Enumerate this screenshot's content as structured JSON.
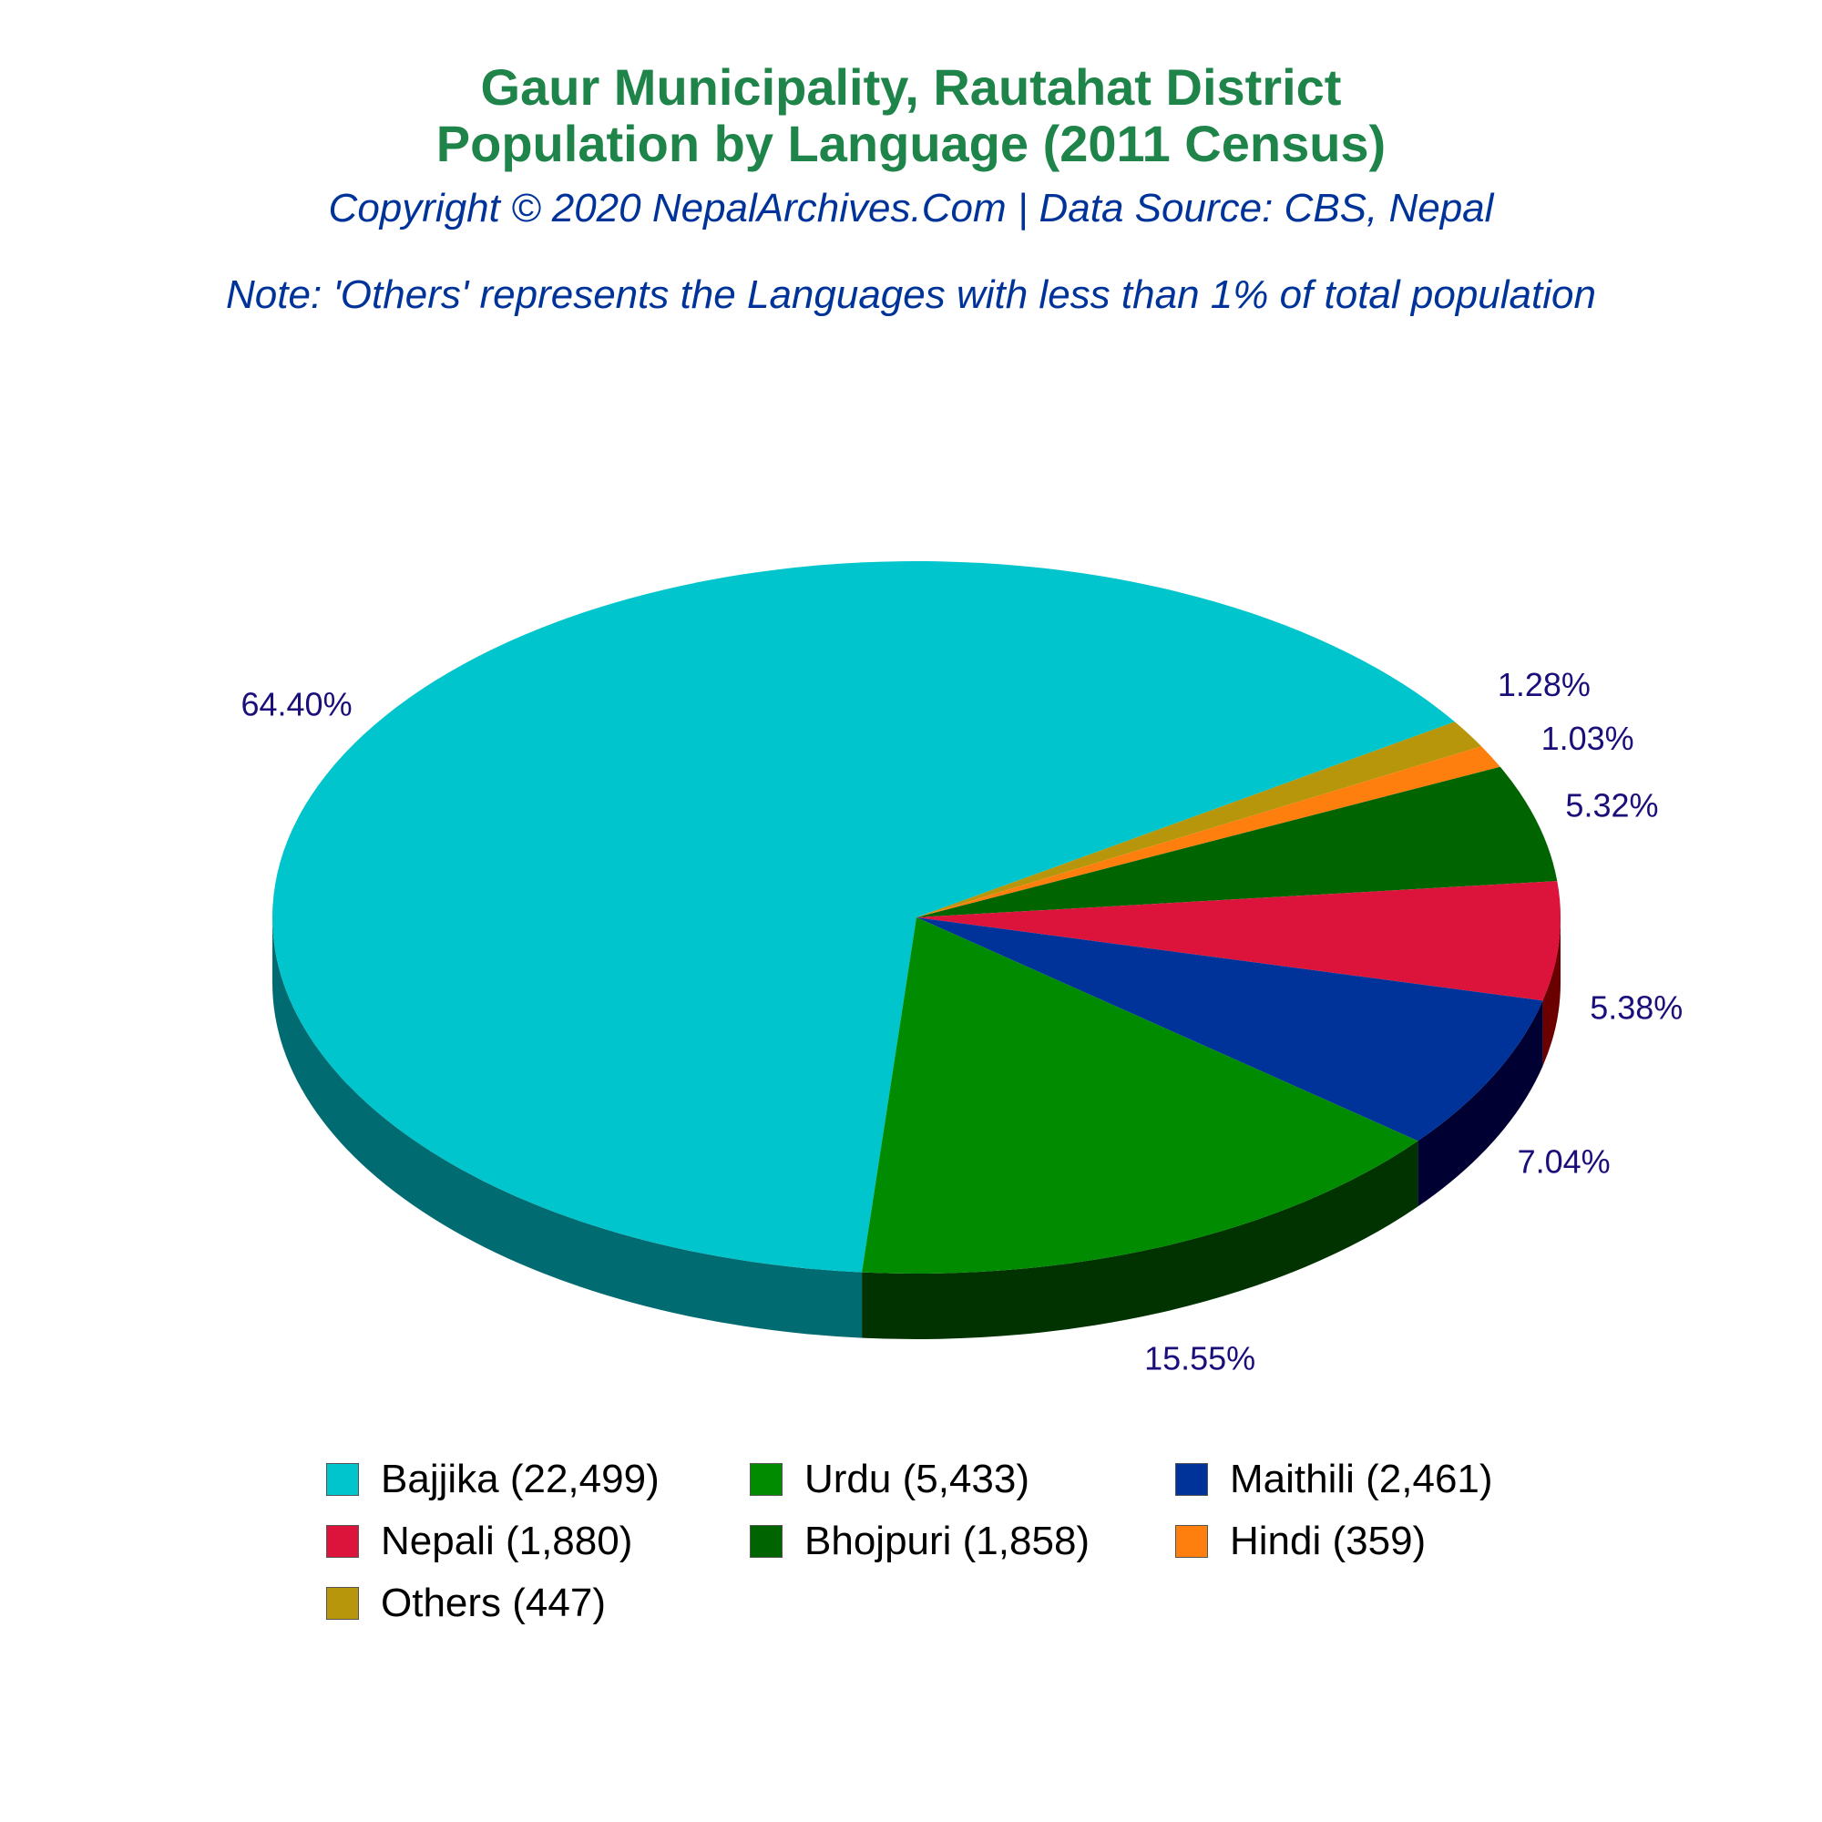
{
  "title_line1": "Gaur Municipality, Rautahat District",
  "title_line2": "Population by Language (2011 Census)",
  "copyright": "Copyright © 2020 NepalArchives.Com | Data Source: CBS, Nepal",
  "note": "Note: 'Others' represents the Languages with less than 1% of total population",
  "chart_data": {
    "type": "pie",
    "slices": [
      {
        "name": "Bajjika",
        "value": 22499,
        "percent_label": "64.40%",
        "legend": "Bajjika (22,499)",
        "color": "#00c5cd",
        "side": "#006b70"
      },
      {
        "name": "Urdu",
        "value": 5433,
        "percent_label": "15.55%",
        "legend": "Urdu (5,433)",
        "color": "#008b00",
        "side": "#003300"
      },
      {
        "name": "Maithili",
        "value": 2461,
        "percent_label": "7.04%",
        "legend": "Maithili (2,461)",
        "color": "#003399",
        "side": "#000033"
      },
      {
        "name": "Nepali",
        "value": 1880,
        "percent_label": "5.38%",
        "legend": "Nepali (1,880)",
        "color": "#dc143c",
        "side": "#6b0000"
      },
      {
        "name": "Bhojpuri",
        "value": 1858,
        "percent_label": "5.32%",
        "legend": "Bhojpuri (1,858)",
        "color": "#006400",
        "side": "#002200"
      },
      {
        "name": "Hindi",
        "value": 359,
        "percent_label": "1.03%",
        "legend": "Hindi (359)",
        "color": "#ff7f0e",
        "side": "#7f3f07"
      },
      {
        "name": "Others",
        "value": 447,
        "percent_label": "1.28%",
        "legend": "Others (447)",
        "color": "#b8960c",
        "side": "#5c4b06"
      }
    ],
    "legend_position": "bottom"
  }
}
